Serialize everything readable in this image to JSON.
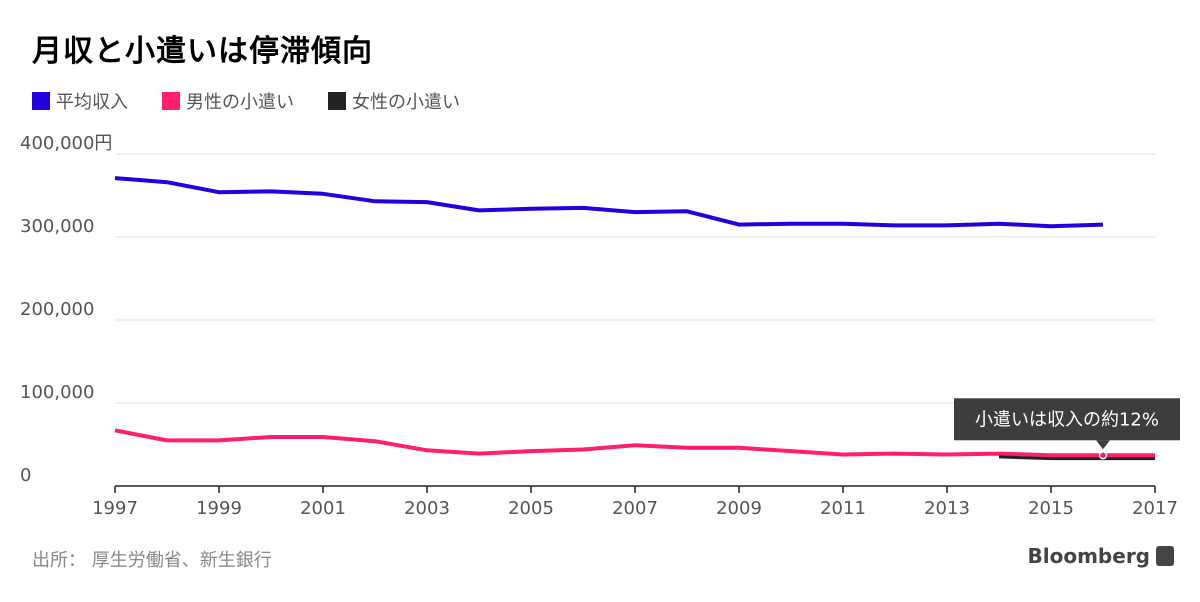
{
  "title": "月収と小遣いは停滞傾向",
  "source": "出所： 厚生労働省、新生銀行",
  "brand": "Bloomberg",
  "chart_data": {
    "type": "line",
    "x": [
      1997,
      1998,
      1999,
      2000,
      2001,
      2002,
      2003,
      2004,
      2005,
      2006,
      2007,
      2008,
      2009,
      2010,
      2011,
      2012,
      2013,
      2014,
      2015,
      2016
    ],
    "xlim": [
      1997,
      2017
    ],
    "xticks": [
      1997,
      1999,
      2001,
      2003,
      2005,
      2007,
      2009,
      2011,
      2013,
      2015,
      2017
    ],
    "ylim": [
      0,
      400000
    ],
    "yticks": [
      0,
      100000,
      200000,
      300000,
      400000
    ],
    "ytick_labels": [
      "0",
      "100,000",
      "200,000",
      "300,000",
      "400,000円"
    ],
    "grid": true,
    "legend_position": "top-left",
    "series": [
      {
        "name": "平均収入",
        "color": "#2200dd",
        "x": [
          1997,
          1998,
          1999,
          2000,
          2001,
          2002,
          2003,
          2004,
          2005,
          2006,
          2007,
          2008,
          2009,
          2010,
          2011,
          2012,
          2013,
          2014,
          2015,
          2016
        ],
        "values": [
          371000,
          366000,
          354000,
          355000,
          352000,
          343000,
          342000,
          332000,
          334000,
          335000,
          330000,
          331000,
          315000,
          316000,
          316000,
          314000,
          314000,
          316000,
          313000,
          315000
        ]
      },
      {
        "name": "男性の小遣い",
        "color": "#ff1f6a",
        "x": [
          1997,
          1998,
          1999,
          2000,
          2001,
          2002,
          2003,
          2004,
          2005,
          2006,
          2007,
          2008,
          2009,
          2010,
          2011,
          2012,
          2013,
          2014,
          2015,
          2016,
          2017
        ],
        "values": [
          67000,
          55000,
          55000,
          59000,
          59000,
          54000,
          43000,
          39000,
          42000,
          44000,
          49000,
          46000,
          46000,
          42000,
          38000,
          39000,
          38000,
          39000,
          37000,
          37000,
          37000
        ]
      },
      {
        "name": "女性の小遣い",
        "color": "#222222",
        "x": [
          2014,
          2015,
          2016,
          2017
        ],
        "values": [
          35000,
          33000,
          33000,
          33000
        ]
      }
    ],
    "annotation": {
      "text": "小遣いは収入の約12%",
      "x": 2016,
      "y": 37000
    }
  }
}
